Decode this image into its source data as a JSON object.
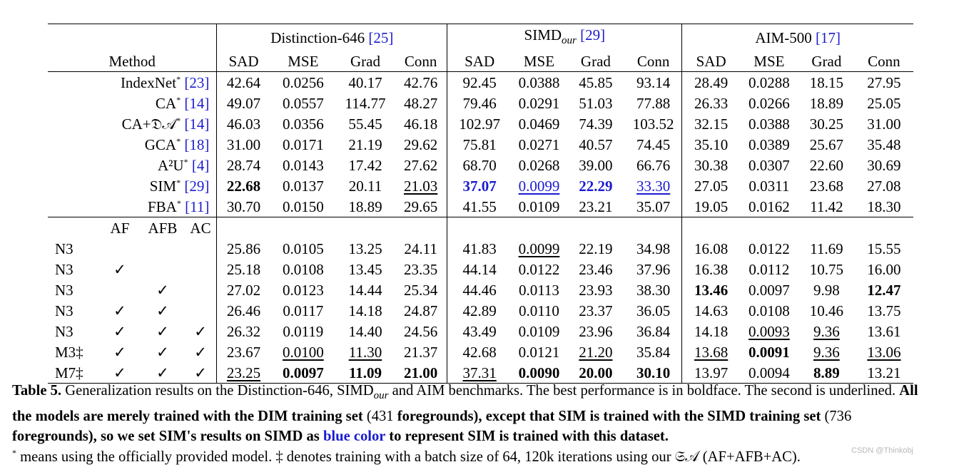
{
  "groups": [
    {
      "name": "Distinction-646",
      "ref": "[25]"
    },
    {
      "name": "SIMD",
      "sub": "our",
      "ref": "[29]"
    },
    {
      "name": "AIM-500",
      "ref": "[17]"
    }
  ],
  "method_header": "Method",
  "metrics": [
    "SAD",
    "MSE",
    "Grad",
    "Conn"
  ],
  "ablation_header": [
    "AF",
    "AFB",
    "AC"
  ],
  "top_rows": [
    {
      "name": "IndexNet",
      "ref": "[23]",
      "cells": [
        "42.64",
        "0.0256",
        "40.17",
        "42.76",
        "92.45",
        "0.0388",
        "45.85",
        "93.14",
        "28.49",
        "0.0288",
        "18.15",
        "27.95"
      ]
    },
    {
      "name": "CA",
      "ref": "[14]",
      "cells": [
        "49.07",
        "0.0557",
        "114.77",
        "48.27",
        "79.46",
        "0.0291",
        "51.03",
        "77.88",
        "26.33",
        "0.0266",
        "18.89",
        "25.05"
      ]
    },
    {
      "name": "CA+𝔇𝒜",
      "ref": "[14]",
      "cells": [
        "46.03",
        "0.0356",
        "55.45",
        "46.18",
        "102.97",
        "0.0469",
        "74.39",
        "103.52",
        "32.15",
        "0.0388",
        "30.25",
        "31.00"
      ]
    },
    {
      "name": "GCA",
      "ref": "[18]",
      "cells": [
        "31.00",
        "0.0171",
        "21.19",
        "29.62",
        "75.81",
        "0.0271",
        "40.57",
        "74.45",
        "35.10",
        "0.0389",
        "25.67",
        "35.48"
      ]
    },
    {
      "name": "A²U",
      "ref": "[4]",
      "cells": [
        "28.74",
        "0.0143",
        "17.42",
        "27.62",
        "68.70",
        "0.0268",
        "39.00",
        "66.76",
        "30.38",
        "0.0307",
        "22.60",
        "30.69"
      ]
    },
    {
      "name": "SIM",
      "ref": "[29]",
      "cells": [
        "22.68",
        "0.0137",
        "20.11",
        "21.03",
        "37.07",
        "0.0099",
        "22.29",
        "33.30",
        "27.05",
        "0.0311",
        "23.68",
        "27.08"
      ]
    },
    {
      "name": "FBA",
      "ref": "[11]",
      "cells": [
        "30.70",
        "0.0150",
        "18.89",
        "29.65",
        "41.55",
        "0.0109",
        "23.21",
        "35.07",
        "19.05",
        "0.0162",
        "11.42",
        "18.30"
      ]
    }
  ],
  "bottom_rows": [
    {
      "name": "N3",
      "checks": [
        "",
        "",
        ""
      ],
      "cells": [
        "25.86",
        "0.0105",
        "13.25",
        "24.11",
        "41.83",
        "0.0099",
        "22.19",
        "34.98",
        "16.08",
        "0.0122",
        "11.69",
        "15.55"
      ]
    },
    {
      "name": "N3",
      "checks": [
        "✓",
        "",
        ""
      ],
      "cells": [
        "25.18",
        "0.0108",
        "13.45",
        "23.35",
        "44.14",
        "0.0122",
        "23.46",
        "37.96",
        "16.38",
        "0.0112",
        "10.75",
        "16.00"
      ]
    },
    {
      "name": "N3",
      "checks": [
        "",
        "✓",
        ""
      ],
      "cells": [
        "27.02",
        "0.0123",
        "14.44",
        "25.34",
        "44.46",
        "0.0113",
        "23.93",
        "38.30",
        "13.46",
        "0.0097",
        "9.98",
        "12.47"
      ]
    },
    {
      "name": "N3",
      "checks": [
        "✓",
        "✓",
        ""
      ],
      "cells": [
        "26.46",
        "0.0117",
        "14.18",
        "24.87",
        "42.89",
        "0.0110",
        "23.37",
        "36.05",
        "14.63",
        "0.0108",
        "10.46",
        "13.75"
      ]
    },
    {
      "name": "N3",
      "checks": [
        "✓",
        "✓",
        "✓"
      ],
      "cells": [
        "26.32",
        "0.0119",
        "14.40",
        "24.56",
        "43.49",
        "0.0109",
        "23.96",
        "36.84",
        "14.18",
        "0.0093",
        "9.36",
        "13.61"
      ]
    },
    {
      "name": "M3‡",
      "checks": [
        "✓",
        "✓",
        "✓"
      ],
      "cells": [
        "23.67",
        "0.0100",
        "11.30",
        "21.37",
        "42.68",
        "0.0121",
        "21.20",
        "35.84",
        "13.68",
        "0.0091",
        "9.36",
        "13.06"
      ]
    },
    {
      "name": "M7‡",
      "checks": [
        "✓",
        "✓",
        "✓"
      ],
      "cells": [
        "23.25",
        "0.0097",
        "11.09",
        "21.00",
        "37.31",
        "0.0090",
        "20.00",
        "30.10",
        "13.97",
        "0.0094",
        "8.89",
        "13.21"
      ]
    }
  ],
  "caption": {
    "label": "Table 5.",
    "text1": " Generalization results on the Distinction-646, SIMD",
    "sub": "our",
    "text2": " and AIM benchmarks. The best performance is in boldface. The second is underlined. ",
    "bold1": "All the models are merely trained with the DIM training set",
    "plain1": " (431 ",
    "bold2": "foregrounds), except that SIM is trained with the SIMD training set",
    "plain2": " (736 ",
    "bold3": "foregrounds), so we set SIM's results on SIMD as ",
    "blue": "blue color",
    "bold4": " to represent SIM is trained with this dataset.",
    "note_star": "*",
    "note": " means using the officially provided model. ‡ denotes training with a batch size of 64, 120k iterations using our 𝔖𝒜 (AF+AFB+AC)."
  },
  "watermark": "CSDN @Thinkobj",
  "colors": {
    "blue": "#1b1bd1"
  }
}
